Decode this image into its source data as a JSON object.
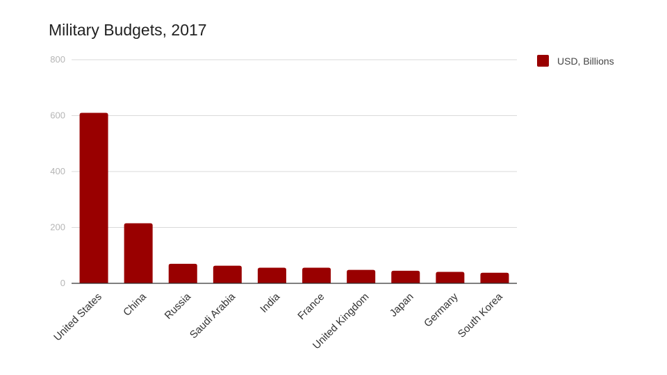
{
  "chart_data": {
    "type": "bar",
    "title": "Military Budgets, 2017",
    "xlabel": "",
    "ylabel": "",
    "categories": [
      "United States",
      "China",
      "Russia",
      "Saudi Arabia",
      "India",
      "France",
      "United Kingdom",
      "Japan",
      "Germany",
      "South Korea"
    ],
    "series": [
      {
        "name": "USD, Billions",
        "values": [
          610,
          215,
          70,
          63,
          56,
          56,
          48,
          45,
          41,
          38
        ],
        "color": "#990000"
      }
    ],
    "ylim": [
      0,
      800
    ],
    "yticks": [
      0,
      200,
      400,
      600,
      800
    ],
    "grid": true,
    "legend_position": "top-right"
  }
}
